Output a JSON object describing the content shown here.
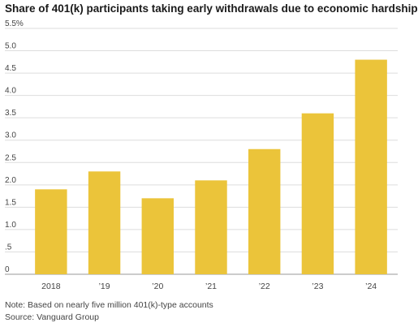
{
  "title": "Share of 401(k) participants taking early withdrawals due to economic hardship",
  "note": "Note: Based on nearly five million 401(k)-type accounts",
  "source": "Source: Vanguard Group",
  "colors": {
    "bar": "#ebc43a",
    "grid": "#dddddd",
    "baseline": "#999999",
    "text": "#444444"
  },
  "chart_data": {
    "type": "bar",
    "categories": [
      "2018",
      "’19",
      "’20",
      "’21",
      "’22",
      "’23",
      "’24"
    ],
    "values": [
      1.9,
      2.3,
      1.7,
      2.1,
      2.8,
      3.6,
      4.8
    ],
    "ylim": [
      0,
      5.5
    ],
    "yticks": [
      {
        "value": 0,
        "label": "0"
      },
      {
        "value": 0.5,
        "label": ".5"
      },
      {
        "value": 1.0,
        "label": "1.0"
      },
      {
        "value": 1.5,
        "label": "1.5"
      },
      {
        "value": 2.0,
        "label": "2.0"
      },
      {
        "value": 2.5,
        "label": "2.5"
      },
      {
        "value": 3.0,
        "label": "3.0"
      },
      {
        "value": 3.5,
        "label": "3.5"
      },
      {
        "value": 4.0,
        "label": "4.0"
      },
      {
        "value": 4.5,
        "label": "4.5"
      },
      {
        "value": 5.0,
        "label": "5.0"
      },
      {
        "value": 5.5,
        "label": "5.5%"
      }
    ],
    "grid": true,
    "xlabel": "",
    "ylabel": ""
  }
}
